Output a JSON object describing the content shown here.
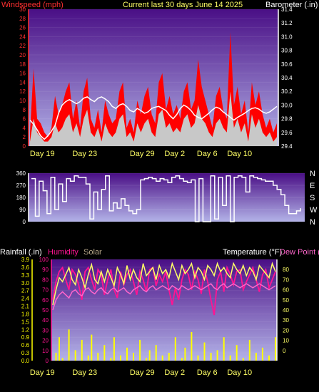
{
  "header": {
    "left_label": "Windspeed (mph)",
    "title": "Current last 30 days June 14 2025",
    "right_label": "Barometer (.in)"
  },
  "date_labels": [
    "Day 19",
    "Day 23",
    "Day 29",
    "Day 2",
    "Day 6",
    "Day 10"
  ],
  "panel3_labels": {
    "rainfall": "Rainfall (.in)",
    "humidity": "Humidity",
    "solar": "Solar",
    "temperature": "Temperature (°F)",
    "dewpoint": "Dew Point ("
  },
  "colors": {
    "wind": "#ff0000",
    "gust": "#c8c8c8",
    "baro": "#ffffff",
    "wind_dir": "#ffffff",
    "humidity": "#ff1493",
    "temperature": "#ffff66",
    "dewpoint": "#ff66cc",
    "rain": "#ffff00",
    "axis_left": "#ff3030",
    "axis_right": "#ffffff",
    "title": "#ffff66"
  },
  "chart_data": [
    {
      "type": "line",
      "name": "wind-baro",
      "x_ticks": [
        "Day 19",
        "Day 23",
        "Day 29",
        "Day 2",
        "Day 6",
        "Day 10"
      ],
      "ylabel": "Windspeed (mph)",
      "y2label": "Barometer (.in)",
      "ylim": [
        0,
        30
      ],
      "y_ticks": [
        0,
        2,
        4,
        6,
        8,
        10,
        12,
        14,
        16,
        18,
        20,
        22,
        24,
        26,
        28,
        30
      ],
      "y2lim": [
        29.4,
        31.4
      ],
      "y2_ticks": [
        29.4,
        29.6,
        29.8,
        30.0,
        30.2,
        30.4,
        30.6,
        30.8,
        31.0,
        31.2,
        31.4
      ],
      "series": [
        {
          "name": "Windspeed",
          "values": [
            3,
            17,
            6,
            5,
            3,
            2,
            4,
            11,
            7,
            9,
            12,
            14,
            6,
            10,
            4,
            12,
            15,
            6,
            4,
            8,
            3,
            10,
            7,
            5,
            6,
            12,
            14,
            4,
            6,
            3,
            10,
            7,
            11,
            13,
            7,
            5,
            14,
            16,
            8,
            11,
            7,
            9,
            6,
            12,
            14,
            8,
            10,
            19,
            13,
            10,
            7,
            4,
            11,
            13,
            8,
            6,
            25,
            9,
            13,
            7,
            10,
            3,
            14,
            9,
            12,
            7,
            4,
            6,
            3,
            5
          ]
        },
        {
          "name": "Gust",
          "values": [
            1,
            6,
            3,
            2,
            1,
            1,
            2,
            5,
            3,
            4,
            6,
            7,
            3,
            5,
            2,
            6,
            8,
            3,
            2,
            4,
            1,
            5,
            3,
            2,
            3,
            6,
            7,
            2,
            3,
            1,
            5,
            3,
            5,
            6,
            3,
            2,
            7,
            8,
            4,
            5,
            3,
            4,
            3,
            6,
            7,
            4,
            5,
            9,
            6,
            5,
            3,
            2,
            5,
            6,
            4,
            3,
            12,
            4,
            6,
            3,
            5,
            1,
            7,
            4,
            6,
            3,
            2,
            3,
            1,
            2
          ]
        },
        {
          "name": "Barometer",
          "values": [
            29.78,
            29.72,
            29.64,
            29.55,
            29.5,
            29.55,
            29.62,
            29.7,
            29.88,
            30.0,
            30.05,
            30.08,
            30.05,
            30.02,
            30.05,
            30.1,
            30.12,
            30.08,
            30.05,
            30.1,
            30.12,
            30.09,
            30.05,
            29.98,
            29.95,
            30.0,
            30.02,
            29.98,
            29.92,
            29.9,
            29.95,
            29.92,
            29.88,
            29.9,
            29.95,
            29.97,
            29.98,
            29.95,
            29.92,
            29.85,
            29.8,
            29.86,
            29.95,
            30.0,
            29.97,
            29.92,
            29.85,
            29.82,
            29.8,
            29.84,
            29.88,
            29.93,
            29.97,
            29.95,
            29.9,
            29.86,
            29.82,
            29.78,
            29.82,
            29.85,
            29.88,
            29.92,
            29.95,
            29.96,
            29.94,
            29.9,
            29.88,
            29.9,
            29.94,
            29.98
          ]
        }
      ]
    },
    {
      "type": "line",
      "name": "wind-direction",
      "x_ticks": [],
      "ylim": [
        0,
        360
      ],
      "y_ticks": [
        0,
        90,
        180,
        270,
        360
      ],
      "y2_ticks": [
        "N",
        "W",
        "S",
        "E",
        "N"
      ],
      "series": [
        {
          "name": "Wind Direction",
          "values": [
            320,
            40,
            300,
            230,
            60,
            330,
            90,
            280,
            150,
            320,
            300,
            340,
            330,
            330,
            280,
            20,
            220,
            90,
            240,
            340,
            80,
            140,
            100,
            170,
            120,
            80,
            60,
            90,
            310,
            320,
            330,
            320,
            300,
            320,
            310,
            290,
            330,
            340,
            320,
            300,
            290,
            310,
            0,
            320,
            0,
            0,
            340,
            20,
            330,
            120,
            340,
            0,
            330,
            340,
            330,
            220,
            340,
            330,
            320,
            310,
            300,
            300,
            270,
            240,
            200,
            120,
            60,
            60,
            80,
            100
          ]
        }
      ]
    },
    {
      "type": "line",
      "name": "temp-humidity-rain",
      "x_ticks": [
        "Day 19",
        "Day 23",
        "Day 29",
        "Day 2",
        "Day 6",
        "Day 10"
      ],
      "ylabel": "Rainfall (.in)",
      "ylim": [
        0,
        3.9
      ],
      "y_ticks": [
        0,
        0.3,
        0.6,
        0.9,
        1.2,
        1.5,
        1.8,
        2.1,
        2.4,
        2.7,
        3.0,
        3.3,
        3.6,
        3.9
      ],
      "humidity_ticks": [
        0,
        10,
        20,
        30,
        40,
        50,
        60,
        70,
        80,
        90,
        100
      ],
      "y2label": "Temperature (°F)",
      "y2lim": [
        -10,
        90
      ],
      "y2_ticks": [
        0,
        10,
        20,
        30,
        40,
        50,
        60,
        70,
        80
      ],
      "series": [
        {
          "name": "Humidity",
          "values": [
            60,
            78,
            88,
            92,
            80,
            70,
            90,
            85,
            75,
            60,
            88,
            92,
            80,
            70,
            90,
            85,
            65,
            80,
            90,
            70,
            62,
            88,
            75,
            85,
            90,
            78,
            65,
            88,
            80,
            68,
            90,
            92,
            74,
            85,
            78,
            88,
            70,
            55,
            72,
            60,
            80,
            90,
            85,
            70,
            88,
            80,
            66,
            90,
            78,
            60,
            45,
            80,
            88,
            68,
            92,
            85,
            75,
            88,
            90,
            70,
            78,
            85,
            92,
            80,
            68,
            85,
            90,
            72,
            80,
            88
          ]
        },
        {
          "name": "Temperature",
          "values": [
            45,
            60,
            72,
            68,
            75,
            82,
            70,
            65,
            80,
            72,
            62,
            75,
            85,
            70,
            66,
            78,
            68,
            80,
            72,
            64,
            82,
            75,
            66,
            84,
            70,
            80,
            72,
            68,
            86,
            74,
            78,
            82,
            70,
            84,
            76,
            80,
            72,
            86,
            78,
            70,
            84,
            76,
            80,
            86,
            72,
            82,
            78,
            70,
            84,
            80,
            74,
            86,
            78,
            82,
            76,
            72,
            86,
            80,
            76,
            84,
            74,
            82,
            78,
            70,
            84,
            80,
            76,
            72,
            86,
            78
          ]
        },
        {
          "name": "Dew Point",
          "values": [
            40,
            50,
            55,
            58,
            55,
            52,
            58,
            60,
            56,
            54,
            60,
            62,
            58,
            56,
            60,
            62,
            58,
            56,
            60,
            62,
            58,
            60,
            62,
            58,
            56,
            60,
            62,
            64,
            60,
            58,
            62,
            64,
            60,
            62,
            64,
            62,
            60,
            64,
            62,
            60,
            64,
            62,
            60,
            62,
            64,
            62,
            60,
            62,
            64,
            66,
            62,
            60,
            64,
            66,
            62,
            64,
            66,
            64,
            62,
            64,
            66,
            64,
            62,
            64,
            66,
            64,
            62,
            60,
            62,
            64
          ]
        },
        {
          "name": "Rainfall",
          "values": [
            0,
            0.3,
            0.9,
            0.1,
            0,
            1.2,
            0,
            0.4,
            0,
            0.8,
            0,
            0.2,
            1.0,
            0,
            0.3,
            0,
            0.6,
            0,
            0.1,
            0.9,
            0,
            0.2,
            0,
            0.5,
            0,
            0.3,
            0,
            0.8,
            0,
            0.1,
            0.4,
            0,
            0.6,
            0,
            0.2,
            0,
            0.3,
            0,
            0.9,
            0,
            0.1,
            0.5,
            0,
            1.1,
            0,
            0.2,
            0,
            0.7,
            0,
            0.3,
            0,
            0.4,
            0,
            0.9,
            0,
            0.2,
            0,
            0.6,
            0,
            0.1,
            0,
            0.8,
            0,
            0.3,
            0,
            0.5,
            0,
            0.2,
            0,
            0.9
          ]
        }
      ]
    }
  ]
}
